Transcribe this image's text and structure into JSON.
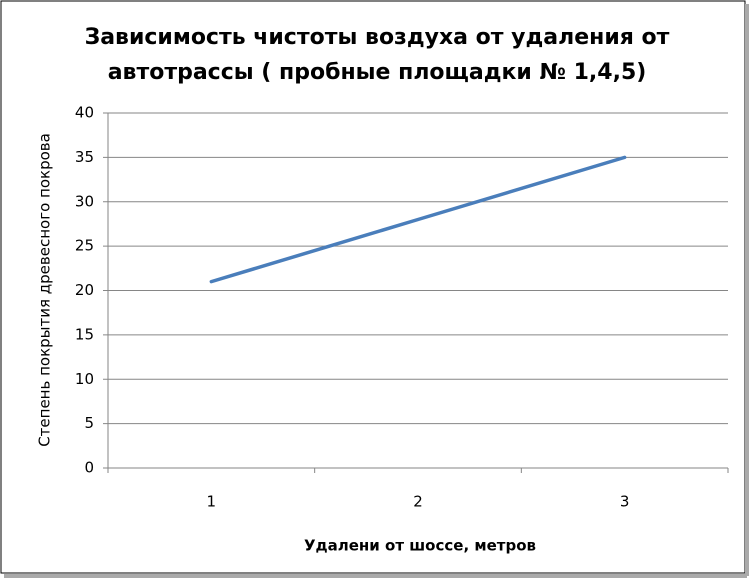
{
  "chart_data": {
    "type": "line",
    "title": [
      "Зависимость чистоты воздуха от удаления от",
      "автотрассы ( пробные площадки № 1,4,5)"
    ],
    "x_label": "Удалени от шоссе, метров",
    "y_label": "Степень покрытия древесного покрова",
    "categories": [
      "1",
      "2",
      "3"
    ],
    "series": [
      {
        "color": "#4a7ebb",
        "values": [
          21,
          28,
          35
        ]
      }
    ],
    "ylim": [
      0,
      40
    ],
    "yticks": [
      0,
      5,
      10,
      15,
      20,
      25,
      30,
      35,
      40
    ],
    "grid": true
  }
}
